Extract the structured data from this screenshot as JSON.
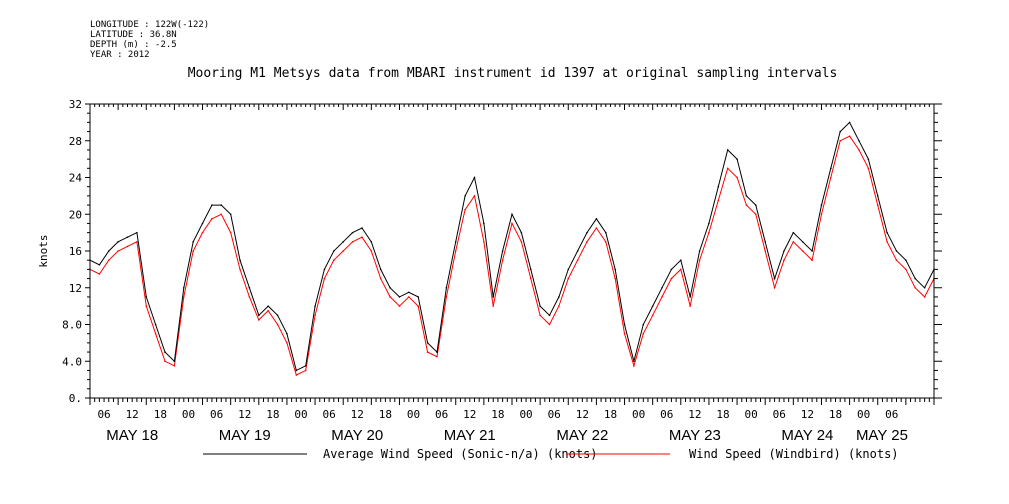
{
  "meta": {
    "longitude": "LONGITUDE : 122W(-122)",
    "latitude": "LATITUDE : 36.8N",
    "depth": "DEPTH (m) : -2.5",
    "year": "YEAR : 2012"
  },
  "title": "Mooring M1 Metsys data from MBARI instrument id 1397 at original sampling intervals",
  "chart_data": {
    "type": "line",
    "title": "Mooring M1 Metsys data from MBARI instrument id 1397 at original sampling intervals",
    "ylabel": "knots",
    "xlabel": "",
    "ylim": [
      0,
      32
    ],
    "xlim_hours": [
      0,
      180
    ],
    "yticks": [
      "0.",
      "4.0",
      "8.0",
      "12",
      "16",
      "20",
      "24",
      "28",
      "32"
    ],
    "hour_ticks": [
      "06",
      "12",
      "18",
      "00",
      "06",
      "12",
      "18",
      "00",
      "06",
      "12",
      "18",
      "00",
      "06",
      "12",
      "18",
      "00",
      "06",
      "12",
      "18",
      "00",
      "06",
      "12",
      "18",
      "00",
      "06",
      "12",
      "18",
      "00",
      "06"
    ],
    "date_labels": [
      "MAY 18",
      "MAY 19",
      "MAY 20",
      "MAY 21",
      "MAY 22",
      "MAY 23",
      "MAY 24",
      "MAY 25"
    ],
    "series": [
      {
        "name": "Average Wind Speed (Sonic-n/a) (knots)",
        "color": "#000000",
        "x": [
          0,
          2,
          4,
          6,
          8,
          10,
          12,
          14,
          16,
          18,
          20,
          22,
          24,
          26,
          28,
          30,
          32,
          34,
          36,
          38,
          40,
          42,
          44,
          46,
          48,
          50,
          52,
          54,
          56,
          58,
          60,
          62,
          64,
          66,
          68,
          70,
          72,
          74,
          76,
          78,
          80,
          82,
          84,
          86,
          88,
          90,
          92,
          94,
          96,
          98,
          100,
          102,
          104,
          106,
          108,
          110,
          112,
          114,
          116,
          118,
          120,
          122,
          124,
          126,
          128,
          130,
          132,
          134,
          136,
          138,
          140,
          142,
          144,
          146,
          148,
          150,
          152,
          154,
          156,
          158,
          160,
          162,
          164,
          166,
          168,
          170,
          172,
          174,
          176,
          178,
          180
        ],
        "values": [
          15,
          14.5,
          16,
          17,
          17.5,
          18,
          11,
          8,
          5,
          4,
          12,
          17,
          19,
          21,
          21,
          20,
          15,
          12,
          9,
          10,
          9,
          7,
          3,
          3.5,
          10,
          14,
          16,
          17,
          18,
          18.5,
          17,
          14,
          12,
          11,
          11.5,
          11,
          6,
          5,
          12,
          17,
          22,
          24,
          19,
          11,
          16,
          20,
          18,
          14,
          10,
          9,
          11,
          14,
          16,
          18,
          19.5,
          18,
          14,
          8,
          4,
          8,
          10,
          12,
          14,
          15,
          11,
          16,
          19,
          23,
          27,
          26,
          22,
          21,
          17,
          13,
          16,
          18,
          17,
          16,
          21,
          25,
          29,
          30,
          28,
          26,
          22,
          18,
          16,
          15,
          13,
          12,
          14
        ]
      },
      {
        "name": "Wind Speed (Windbird) (knots)",
        "color": "#ff0000",
        "x": [
          0,
          2,
          4,
          6,
          8,
          10,
          12,
          14,
          16,
          18,
          20,
          22,
          24,
          26,
          28,
          30,
          32,
          34,
          36,
          38,
          40,
          42,
          44,
          46,
          48,
          50,
          52,
          54,
          56,
          58,
          60,
          62,
          64,
          66,
          68,
          70,
          72,
          74,
          76,
          78,
          80,
          82,
          84,
          86,
          88,
          90,
          92,
          94,
          96,
          98,
          100,
          102,
          104,
          106,
          108,
          110,
          112,
          114,
          116,
          118,
          120,
          122,
          124,
          126,
          128,
          130,
          132,
          134,
          136,
          138,
          140,
          142,
          144,
          146,
          148,
          150,
          152,
          154,
          156,
          158,
          160,
          162,
          164,
          166,
          168,
          170,
          172,
          174,
          176,
          178,
          180
        ],
        "values": [
          14,
          13.5,
          15,
          16,
          16.5,
          17,
          10,
          7,
          4,
          3.5,
          11,
          16,
          18,
          19.5,
          20,
          18,
          14,
          11,
          8.5,
          9.5,
          8,
          6,
          2.5,
          3,
          9,
          13,
          15,
          16,
          17,
          17.5,
          16,
          13,
          11,
          10,
          11,
          10,
          5,
          4.5,
          11,
          16,
          20.5,
          22,
          17,
          10,
          15,
          19,
          17,
          13,
          9,
          8,
          10,
          13,
          15,
          17,
          18.5,
          17,
          13,
          7,
          3.5,
          7,
          9,
          11,
          13,
          14,
          10,
          15,
          18,
          21.5,
          25,
          24,
          21,
          20,
          16,
          12,
          15,
          17,
          16,
          15,
          20,
          24,
          28,
          28.5,
          27,
          25,
          21,
          17,
          15,
          14,
          12,
          11,
          13
        ]
      }
    ]
  }
}
